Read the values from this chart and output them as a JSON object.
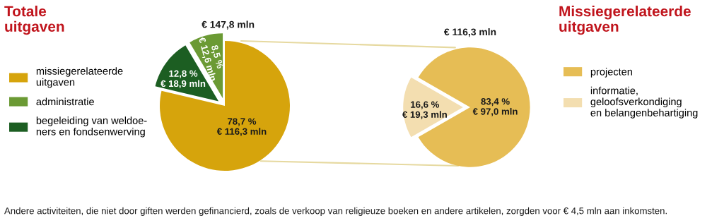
{
  "chart_data": [
    {
      "type": "pie",
      "title": "Totale\nuitgaven",
      "subtitle": "€ 147,8 mln",
      "categories": [
        "missiegerelateerde\nuitgaven",
        "administratie",
        "begeleiding van weldoe-\nners en fondsenwerving"
      ],
      "values": [
        78.7,
        8.5,
        12.8
      ],
      "colors": [
        "#d6a40c",
        "#6b9a34",
        "#1c5e22"
      ],
      "value_labels": [
        "78,7 %\n€ 116,3 mln",
        "8,5 %\n€ 12,6 mln",
        "12,8 %\n€ 18,9 mln"
      ],
      "legend": "left",
      "annotations": [
        "Andere activiteiten, die niet door giften werden gefinancierd, zoals de verkoop van religieuze boeken en andere artikelen, zorgden voor € 4,5 mln aan inkomsten."
      ]
    },
    {
      "type": "pie",
      "title": "Missiegerelateerde\nuitgaven",
      "subtitle": "€ 116,3 mln",
      "categories": [
        "projecten",
        "informatie,\ngeloofsverkondiging\nen belangenbehartiging"
      ],
      "values": [
        83.4,
        16.6
      ],
      "colors": [
        "#e6bd55",
        "#f3deb0"
      ],
      "value_labels": [
        "83,4 %\n€ 97,0 mln",
        "16,6 %\n€ 19,3 mln"
      ],
      "legend": "right"
    }
  ]
}
